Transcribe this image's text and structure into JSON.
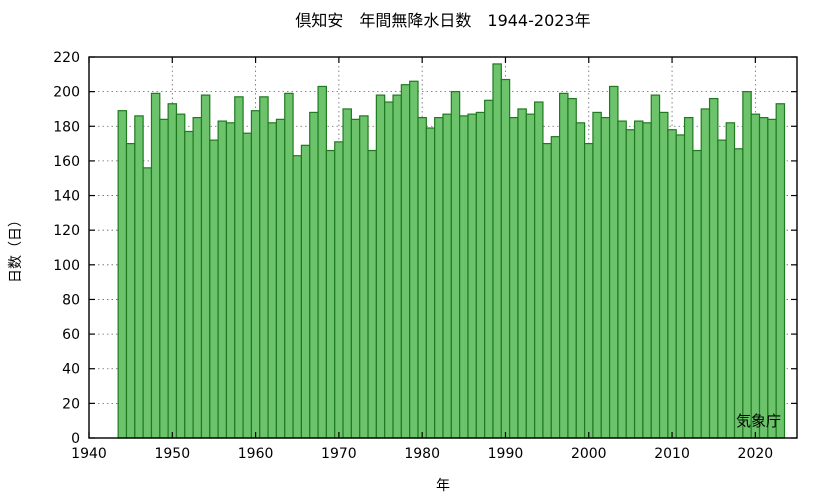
{
  "chart_data": {
    "type": "bar",
    "title": "倶知安　年間無降水日数　1944-2023年",
    "xlabel": "年",
    "ylabel": "日数（日）",
    "source": "気象庁",
    "xlim": [
      1940,
      2025
    ],
    "ylim": [
      0,
      220
    ],
    "xticks": [
      1940,
      1950,
      1960,
      1970,
      1980,
      1990,
      2000,
      2010,
      2020
    ],
    "yticks": [
      0,
      20,
      40,
      60,
      80,
      100,
      120,
      140,
      160,
      180,
      200,
      220
    ],
    "grid": true,
    "x": [
      1944,
      1945,
      1946,
      1947,
      1948,
      1949,
      1950,
      1951,
      1952,
      1953,
      1954,
      1955,
      1956,
      1957,
      1958,
      1959,
      1960,
      1961,
      1962,
      1963,
      1964,
      1965,
      1966,
      1967,
      1968,
      1969,
      1970,
      1971,
      1972,
      1973,
      1974,
      1975,
      1976,
      1977,
      1978,
      1979,
      1980,
      1981,
      1982,
      1983,
      1984,
      1985,
      1986,
      1987,
      1988,
      1989,
      1990,
      1991,
      1992,
      1993,
      1994,
      1995,
      1996,
      1997,
      1998,
      1999,
      2000,
      2001,
      2002,
      2003,
      2004,
      2005,
      2006,
      2007,
      2008,
      2009,
      2010,
      2011,
      2012,
      2013,
      2014,
      2015,
      2016,
      2017,
      2018,
      2019,
      2020,
      2021,
      2022,
      2023
    ],
    "values": [
      189,
      170,
      186,
      156,
      199,
      184,
      193,
      187,
      177,
      185,
      198,
      172,
      183,
      182,
      197,
      176,
      189,
      197,
      182,
      184,
      199,
      163,
      169,
      188,
      203,
      166,
      171,
      190,
      184,
      186,
      166,
      198,
      194,
      198,
      204,
      206,
      185,
      179,
      185,
      187,
      200,
      186,
      187,
      188,
      195,
      216,
      207,
      185,
      190,
      187,
      194,
      170,
      174,
      199,
      196,
      182,
      170,
      188,
      185,
      203,
      183,
      178,
      183,
      182,
      198,
      188,
      178,
      175,
      185,
      166,
      190,
      196,
      172,
      182,
      167,
      200,
      187,
      185,
      184,
      193
    ],
    "colors": {
      "bar_fill": "#6cc36c",
      "bar_stroke": "#1f7a1f"
    }
  }
}
